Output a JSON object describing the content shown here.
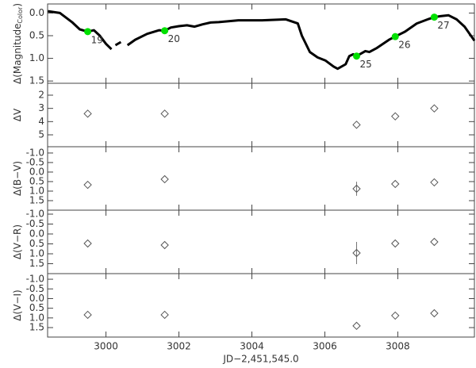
{
  "chart_data": [
    {
      "type": "line",
      "ylabel": "Δ(Magnitude",
      "ylabel_sub": "Color",
      "ylabel_end": ")",
      "xlim": [
        2998.4,
        3010.1
      ],
      "ylim": [
        -0.2,
        1.55
      ],
      "y_inverted": true,
      "yticks": [
        {
          "value": 0,
          "label": "0.0"
        },
        {
          "value": 0.5,
          "label": "0.5"
        },
        {
          "value": 1,
          "label": "1.0"
        },
        {
          "value": 1.5,
          "label": "1.5"
        }
      ],
      "series": [
        {
          "color": "#000000",
          "x": [
            2998.41,
            2998.74,
            2999.07,
            2999.28,
            2999.5,
            2999.67,
            2999.83,
            3000.0,
            3000.15,
            3000.2,
            3000.26,
            3000.41,
            3000.5,
            3000.59,
            3000.8,
            3001.13,
            3001.46,
            3001.61,
            3001.78,
            3002.0,
            3002.22,
            3002.43,
            3002.65,
            3002.87,
            3003.09,
            3003.63,
            3004.28,
            3004.93,
            3005.26,
            3005.37,
            3005.59,
            3005.8,
            3006.02,
            3006.24,
            3006.35,
            3006.57,
            3006.67,
            3006.78,
            3006.87,
            3007.0,
            3007.11,
            3007.22,
            3007.43,
            3007.76,
            3007.93,
            3008.2,
            3008.52,
            3008.85,
            3009.0,
            3009.17,
            3009.39,
            3009.61,
            3009.83,
            3010.1
          ],
          "values": [
            -0.04,
            0,
            0.2,
            0.36,
            0.41,
            0.38,
            0.5,
            0.68,
            0.8,
            null,
            0.71,
            0.64,
            null,
            0.71,
            0.59,
            0.46,
            0.38,
            0.39,
            0.32,
            0.29,
            0.27,
            0.3,
            0.25,
            0.21,
            0.2,
            0.16,
            0.16,
            0.14,
            0.23,
            0.5,
            0.86,
            0.98,
            1.05,
            1.18,
            1.23,
            1.13,
            0.95,
            0.91,
            0.95,
            0.89,
            0.84,
            0.86,
            0.77,
            0.59,
            0.52,
            0.41,
            0.23,
            0.13,
            0.09,
            0.07,
            0.05,
            0.14,
            0.3,
            0.61
          ]
        },
        {
          "color": "#00e000",
          "x": [
            2999.5,
            3001.61,
            3006.87,
            3007.93,
            3009.0
          ],
          "values": [
            0.41,
            0.39,
            0.95,
            0.52,
            0.09
          ],
          "point_labels": [
            "19",
            "20",
            "25",
            "26",
            "27"
          ]
        }
      ]
    },
    {
      "type": "scatter",
      "ylabel": "ΔV",
      "xlim": [
        2998.4,
        3010.1
      ],
      "ylim": [
        1.1,
        5.9
      ],
      "y_inverted": true,
      "yticks": [
        2,
        3,
        4,
        5
      ],
      "color": "#555555",
      "x": [
        2999.5,
        3001.61,
        3006.87,
        3007.93,
        3009.0
      ],
      "values": [
        3.4,
        3.4,
        4.24,
        3.6,
        3.0
      ]
    },
    {
      "type": "scatter",
      "ylabel": "Δ(B−V)",
      "xlim": [
        2998.4,
        3010.1
      ],
      "ylim": [
        -1.33,
        2.0
      ],
      "y_inverted": true,
      "color": "#555555",
      "yticks": [
        {
          "value": -1,
          "label": "-1.0"
        },
        {
          "value": -0.5,
          "label": "-0.5"
        },
        {
          "value": 0,
          "label": "0.0"
        },
        {
          "value": 0.5,
          "label": "0.5"
        },
        {
          "value": 1,
          "label": "1.0"
        },
        {
          "value": 1.5,
          "label": "1.5"
        }
      ],
      "x": [
        2999.5,
        3001.61,
        3006.87,
        3007.93,
        3009.0
      ],
      "values": [
        0.67,
        0.375,
        0.875,
        0.625,
        0.54
      ],
      "errors": [
        null,
        null,
        0.37,
        null,
        null
      ]
    },
    {
      "type": "scatter",
      "ylabel": "Δ(V−R)",
      "xlim": [
        2998.4,
        3010.1
      ],
      "ylim": [
        -1.2,
        2.0
      ],
      "y_inverted": true,
      "color": "#555555",
      "yticks": [
        {
          "value": -1,
          "label": "-1.0"
        },
        {
          "value": -0.5,
          "label": "-0.5"
        },
        {
          "value": 0,
          "label": "0.0"
        },
        {
          "value": 0.5,
          "label": "0.5"
        },
        {
          "value": 1,
          "label": "1.0"
        },
        {
          "value": 1.5,
          "label": "1.5"
        }
      ],
      "x": [
        2999.5,
        3001.61,
        3006.87,
        3007.93,
        3009.0
      ],
      "values": [
        0.48,
        0.56,
        0.96,
        0.48,
        0.4
      ],
      "errors": [
        null,
        null,
        0.56,
        null,
        null
      ]
    },
    {
      "type": "scatter",
      "ylabel": "Δ(V−I)",
      "xlabel": "JD−2,451,545.0",
      "xlim": [
        2998.4,
        3010.1
      ],
      "ylim": [
        -1.29,
        1.99
      ],
      "y_inverted": true,
      "color": "#555555",
      "xticks": [
        3000,
        3002,
        3004,
        3006,
        3008
      ],
      "yticks": [
        {
          "value": -1,
          "label": "-1.0"
        },
        {
          "value": -0.5,
          "label": "-0.5"
        },
        {
          "value": 0,
          "label": "0.0"
        },
        {
          "value": 0.5,
          "label": "0.5"
        },
        {
          "value": 1,
          "label": "1.0"
        },
        {
          "value": 1.5,
          "label": "1.5"
        }
      ],
      "x": [
        2999.5,
        3001.61,
        3006.87,
        3007.93,
        3009.0
      ],
      "values": [
        0.84,
        0.84,
        1.41,
        0.88,
        0.76
      ]
    }
  ]
}
